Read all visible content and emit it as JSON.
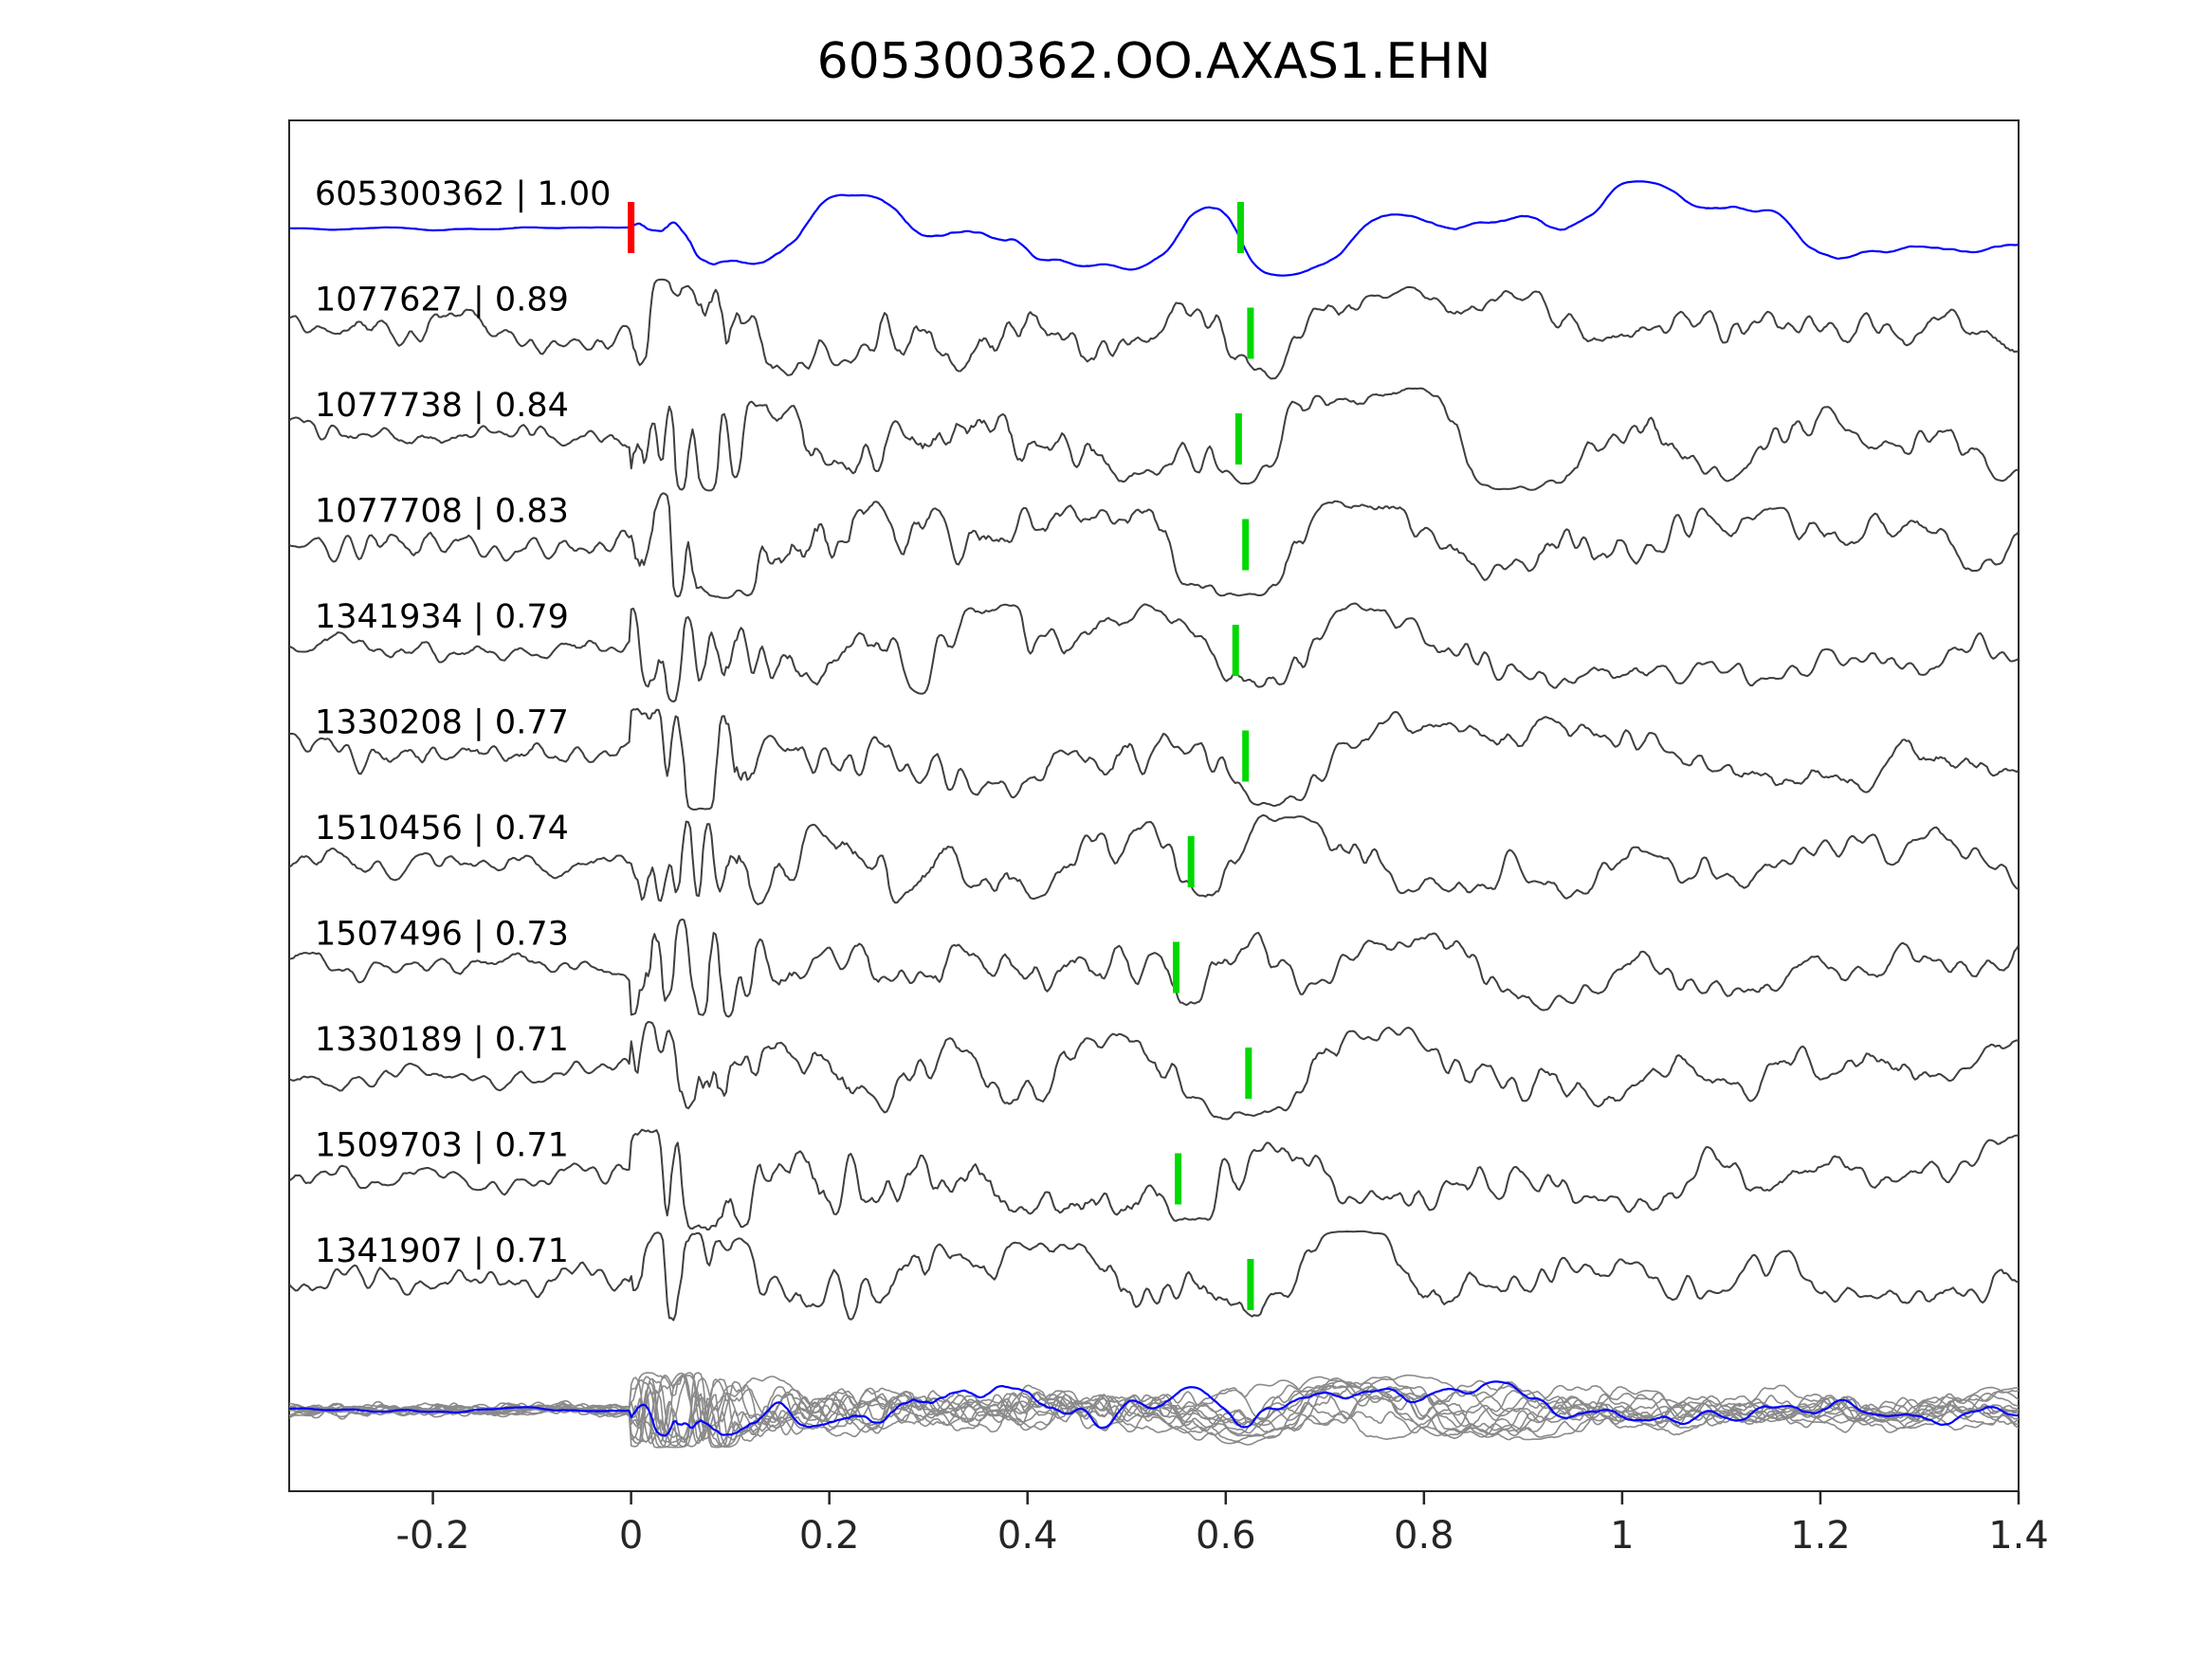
{
  "title": "605300362.OO.AXAS1.EHN",
  "chart_data": {
    "type": "line",
    "subtype": "seismogram-waveform-stack",
    "title": "605300362.OO.AXAS1.EHN",
    "xlabel": "",
    "ylabel": "",
    "xlim": [
      -0.345,
      1.4
    ],
    "x_ticks": [
      "-0.2",
      "0",
      "0.2",
      "0.4",
      "0.6",
      "0.8",
      "1",
      "1.2",
      "1.4"
    ],
    "x_tick_values": [
      -0.2,
      0,
      0.2,
      0.4,
      0.6,
      0.8,
      1,
      1.2,
      1.4
    ],
    "grid": false,
    "legend": false,
    "colors": {
      "template_trace": "#0000ff",
      "detection_trace": "#3f3f3f",
      "template_pick": "#ff0000",
      "detection_pick": "#00d800",
      "overlay_trace": "#8a8a8a",
      "axis": "#262626"
    },
    "traces": [
      {
        "id": "605300362",
        "correlation": 1.0,
        "label": "605300362 | 1.00",
        "role": "template",
        "picks": [
          {
            "time": 0.0,
            "kind": "template-pick",
            "color": "#ff0000"
          },
          {
            "time": 0.615,
            "kind": "detected-pick",
            "color": "#00d800"
          }
        ]
      },
      {
        "id": "1077627",
        "correlation": 0.89,
        "label": "1077627 | 0.89",
        "role": "detection",
        "picks": [
          {
            "time": 0.625,
            "kind": "detected-pick",
            "color": "#00d800"
          }
        ]
      },
      {
        "id": "1077738",
        "correlation": 0.84,
        "label": "1077738 | 0.84",
        "role": "detection",
        "picks": [
          {
            "time": 0.613,
            "kind": "detected-pick",
            "color": "#00d800"
          }
        ]
      },
      {
        "id": "1077708",
        "correlation": 0.83,
        "label": "1077708 | 0.83",
        "role": "detection",
        "picks": [
          {
            "time": 0.62,
            "kind": "detected-pick",
            "color": "#00d800"
          }
        ]
      },
      {
        "id": "1341934",
        "correlation": 0.79,
        "label": "1341934 | 0.79",
        "role": "detection",
        "picks": [
          {
            "time": 0.61,
            "kind": "detected-pick",
            "color": "#00d800"
          }
        ]
      },
      {
        "id": "1330208",
        "correlation": 0.77,
        "label": "1330208 | 0.77",
        "role": "detection",
        "picks": [
          {
            "time": 0.62,
            "kind": "detected-pick",
            "color": "#00d800"
          }
        ]
      },
      {
        "id": "1510456",
        "correlation": 0.74,
        "label": "1510456 | 0.74",
        "role": "detection",
        "picks": [
          {
            "time": 0.565,
            "kind": "detected-pick",
            "color": "#00d800"
          }
        ]
      },
      {
        "id": "1507496",
        "correlation": 0.73,
        "label": "1507496 | 0.73",
        "role": "detection",
        "picks": [
          {
            "time": 0.55,
            "kind": "detected-pick",
            "color": "#00d800"
          }
        ]
      },
      {
        "id": "1330189",
        "correlation": 0.71,
        "label": "1330189 | 0.71",
        "role": "detection",
        "picks": [
          {
            "time": 0.623,
            "kind": "detected-pick",
            "color": "#00d800"
          }
        ]
      },
      {
        "id": "1509703",
        "correlation": 0.71,
        "label": "1509703 | 0.71",
        "role": "detection",
        "picks": [
          {
            "time": 0.552,
            "kind": "detected-pick",
            "color": "#00d800"
          }
        ]
      },
      {
        "id": "1341907",
        "correlation": 0.71,
        "label": "1341907 | 0.71",
        "role": "detection",
        "picks": [
          {
            "time": 0.625,
            "kind": "detected-pick",
            "color": "#00d800"
          }
        ]
      }
    ],
    "overlay": {
      "count": 12,
      "color": "#8a8a8a",
      "highlight_color": "#0000ff"
    }
  }
}
